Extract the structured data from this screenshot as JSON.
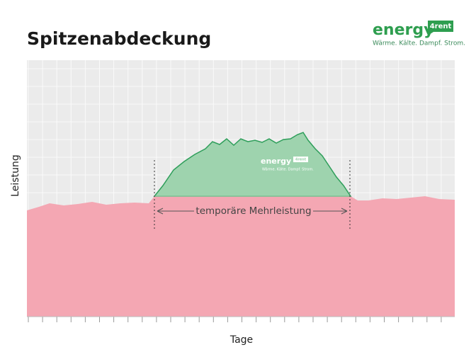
{
  "header": {
    "title": "Spitzenabdeckung"
  },
  "logo": {
    "brand": "energy",
    "badge": "4rent",
    "tagline": "Wärme. Kälte. Dampf. Strom."
  },
  "diagram": {
    "y_label": "Leistung",
    "x_label": "Tage",
    "annotation": "temporäre Mehrleistung",
    "watermark": {
      "brand": "energy",
      "badge": "4rent",
      "tagline": "Wärme. Kälte. Dampf. Strom."
    }
  }
}
